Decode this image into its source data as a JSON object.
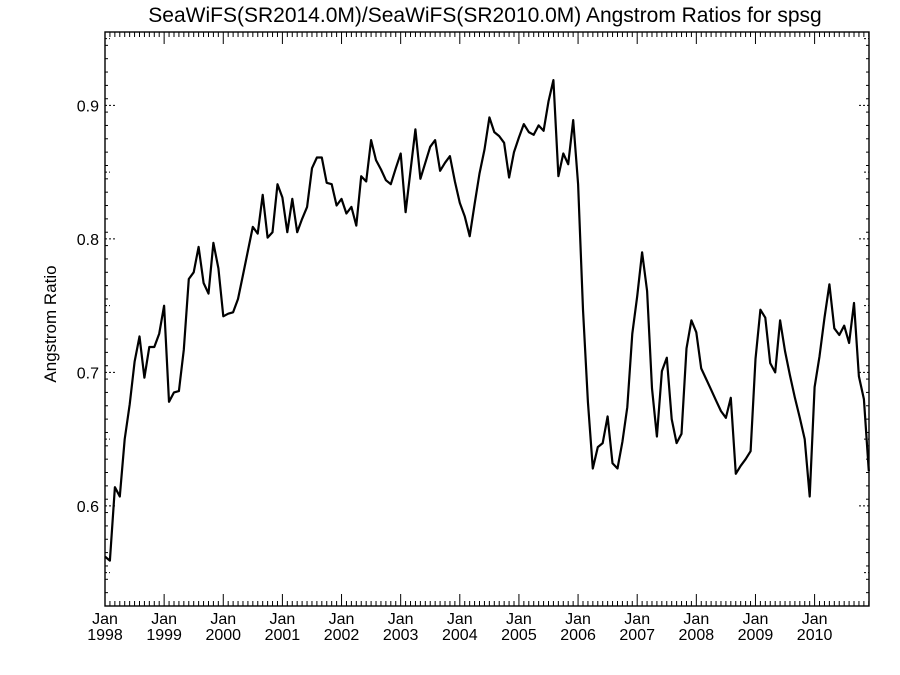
{
  "chart_data": {
    "type": "line",
    "title": "SeaWiFS(SR2014.0M)/SeaWiFS(SR2010.0M)  Angstrom Ratios for spsg",
    "ylabel": "Angstrom Ratio",
    "xlabel": "",
    "xlim": [
      1998.0,
      2010.92
    ],
    "ylim": [
      0.525,
      0.955
    ],
    "grid": false,
    "y_major_ticks": [
      "0.6",
      "0.7",
      "0.8",
      "0.9"
    ],
    "x_ticks": [
      {
        "month": "Jan",
        "year": "1998"
      },
      {
        "month": "Jan",
        "year": "1999"
      },
      {
        "month": "Jan",
        "year": "2000"
      },
      {
        "month": "Jan",
        "year": "2001"
      },
      {
        "month": "Jan",
        "year": "2002"
      },
      {
        "month": "Jan",
        "year": "2003"
      },
      {
        "month": "Jan",
        "year": "2004"
      },
      {
        "month": "Jan",
        "year": "2005"
      },
      {
        "month": "Jan",
        "year": "2006"
      },
      {
        "month": "Jan",
        "year": "2007"
      },
      {
        "month": "Jan",
        "year": "2008"
      },
      {
        "month": "Jan",
        "year": "2009"
      },
      {
        "month": "Jan",
        "year": "2010"
      }
    ],
    "series": [
      {
        "color": "#000000",
        "x": [
          1998.0,
          1998.083,
          1998.167,
          1998.25,
          1998.333,
          1998.417,
          1998.5,
          1998.583,
          1998.667,
          1998.75,
          1998.833,
          1998.917,
          1999.0,
          1999.083,
          1999.167,
          1999.25,
          1999.333,
          1999.417,
          1999.5,
          1999.583,
          1999.667,
          1999.75,
          1999.833,
          1999.917,
          2000.0,
          2000.083,
          2000.167,
          2000.25,
          2000.333,
          2000.417,
          2000.5,
          2000.583,
          2000.667,
          2000.75,
          2000.833,
          2000.917,
          2001.0,
          2001.083,
          2001.167,
          2001.25,
          2001.333,
          2001.417,
          2001.5,
          2001.583,
          2001.667,
          2001.75,
          2001.833,
          2001.917,
          2002.0,
          2002.083,
          2002.167,
          2002.25,
          2002.333,
          2002.417,
          2002.5,
          2002.583,
          2002.667,
          2002.75,
          2002.833,
          2002.917,
          2003.0,
          2003.083,
          2003.167,
          2003.25,
          2003.333,
          2003.417,
          2003.5,
          2003.583,
          2003.667,
          2003.75,
          2003.833,
          2003.917,
          2004.0,
          2004.083,
          2004.167,
          2004.25,
          2004.333,
          2004.417,
          2004.5,
          2004.583,
          2004.667,
          2004.75,
          2004.833,
          2004.917,
          2005.0,
          2005.083,
          2005.167,
          2005.25,
          2005.333,
          2005.417,
          2005.5,
          2005.583,
          2005.667,
          2005.75,
          2005.833,
          2005.917,
          2006.0,
          2006.083,
          2006.167,
          2006.25,
          2006.333,
          2006.417,
          2006.5,
          2006.583,
          2006.667,
          2006.75,
          2006.833,
          2006.917,
          2007.0,
          2007.083,
          2007.167,
          2007.25,
          2007.333,
          2007.417,
          2007.5,
          2007.583,
          2007.667,
          2007.75,
          2007.833,
          2007.917,
          2008.0,
          2008.083,
          2008.167,
          2008.25,
          2008.333,
          2008.417,
          2008.5,
          2008.583,
          2008.667,
          2008.75,
          2008.833,
          2008.917,
          2009.0,
          2009.083,
          2009.167,
          2009.25,
          2009.333,
          2009.417,
          2009.5,
          2009.583,
          2009.667,
          2009.75,
          2009.833,
          2009.917,
          2010.0,
          2010.083,
          2010.167,
          2010.25,
          2010.333,
          2010.417,
          2010.5,
          2010.583,
          2010.667,
          2010.75,
          2010.833,
          2010.917
        ],
        "y": [
          0.562,
          0.559,
          0.614,
          0.607,
          0.65,
          0.676,
          0.708,
          0.727,
          0.696,
          0.719,
          0.719,
          0.729,
          0.75,
          0.678,
          0.685,
          0.686,
          0.717,
          0.77,
          0.775,
          0.794,
          0.767,
          0.759,
          0.797,
          0.778,
          0.742,
          0.744,
          0.745,
          0.755,
          0.773,
          0.791,
          0.809,
          0.804,
          0.833,
          0.801,
          0.805,
          0.841,
          0.831,
          0.805,
          0.83,
          0.805,
          0.815,
          0.824,
          0.853,
          0.861,
          0.861,
          0.842,
          0.841,
          0.825,
          0.83,
          0.819,
          0.824,
          0.81,
          0.847,
          0.843,
          0.874,
          0.859,
          0.852,
          0.844,
          0.841,
          0.853,
          0.864,
          0.82,
          0.851,
          0.882,
          0.845,
          0.857,
          0.869,
          0.874,
          0.851,
          0.857,
          0.862,
          0.843,
          0.827,
          0.817,
          0.802,
          0.826,
          0.849,
          0.867,
          0.891,
          0.88,
          0.877,
          0.872,
          0.846,
          0.865,
          0.876,
          0.886,
          0.88,
          0.878,
          0.885,
          0.881,
          0.903,
          0.919,
          0.847,
          0.864,
          0.856,
          0.889,
          0.841,
          0.747,
          0.678,
          0.628,
          0.644,
          0.647,
          0.667,
          0.632,
          0.628,
          0.648,
          0.674,
          0.729,
          0.757,
          0.79,
          0.761,
          0.688,
          0.652,
          0.701,
          0.711,
          0.665,
          0.647,
          0.654,
          0.718,
          0.739,
          0.73,
          0.703,
          0.695,
          0.687,
          0.679,
          0.671,
          0.666,
          0.681,
          0.624,
          0.63,
          0.635,
          0.641,
          0.71,
          0.747,
          0.741,
          0.707,
          0.7,
          0.739,
          0.716,
          0.698,
          0.681,
          0.666,
          0.65,
          0.607,
          0.689,
          0.712,
          0.741,
          0.766,
          0.733,
          0.728,
          0.735,
          0.722,
          0.752,
          0.697,
          0.68,
          0.626
        ]
      }
    ]
  }
}
